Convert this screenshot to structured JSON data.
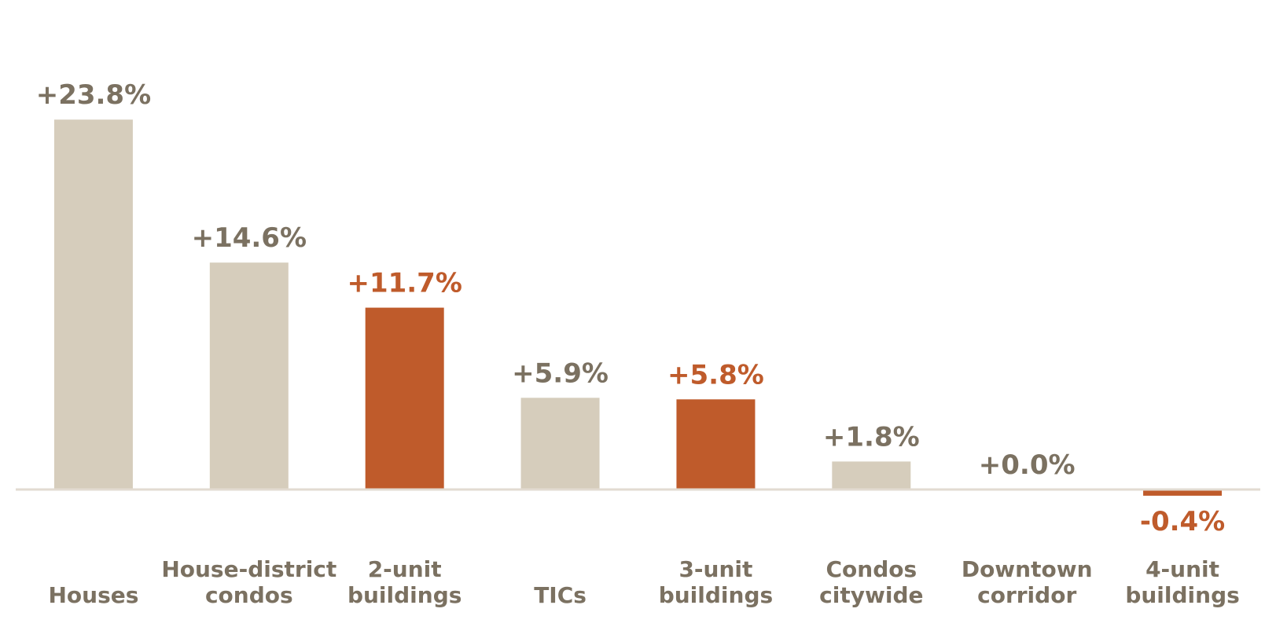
{
  "chart_data": {
    "type": "bar",
    "title": "",
    "xlabel": "",
    "ylabel": "",
    "categories": [
      [
        "Houses"
      ],
      [
        "House-district",
        "condos"
      ],
      [
        "2-unit",
        "buildings"
      ],
      [
        "TICs"
      ],
      [
        "3-unit",
        "buildings"
      ],
      [
        "Condos",
        "citywide"
      ],
      [
        "Downtown",
        "corridor"
      ],
      [
        "4-unit",
        "buildings"
      ]
    ],
    "values": [
      23.8,
      14.6,
      11.7,
      5.9,
      5.8,
      1.8,
      0.0,
      -0.4
    ],
    "value_labels": [
      "+23.8%",
      "+14.6%",
      "+11.7%",
      "+5.9%",
      "+5.8%",
      "+1.8%",
      "+0.0%",
      "-0.4%"
    ],
    "highlighted": [
      false,
      false,
      true,
      false,
      true,
      false,
      false,
      true
    ],
    "ylim": [
      -0.4,
      23.8
    ],
    "grid": false,
    "legend": "none",
    "colors": {
      "bar_default": "#d6cdbc",
      "bar_highlight": "#bf5b2b",
      "label_default": "#7b7161",
      "label_highlight": "#bf5b2b",
      "axis_line": "#e2dbd1"
    }
  }
}
